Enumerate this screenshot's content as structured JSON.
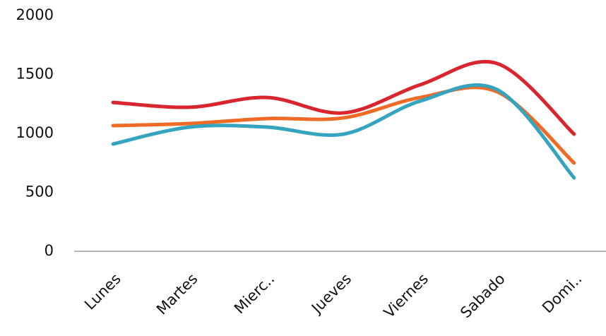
{
  "chart_data": {
    "type": "line",
    "categories": [
      "Lunes",
      "Martes",
      "Mierc..",
      "Jueves",
      "Viernes",
      "Sabado",
      "Domi.."
    ],
    "series": [
      {
        "color": "#d9262e",
        "values": [
          1263,
          1222,
          1305,
          1174,
          1413,
          1593,
          994
        ]
      },
      {
        "color": "#ee6a25",
        "values": [
          1066,
          1084,
          1126,
          1132,
          1305,
          1353,
          749
        ]
      },
      {
        "color": "#34a4bf",
        "values": [
          910,
          1054,
          1054,
          994,
          1275,
          1371,
          623
        ]
      }
    ],
    "ylim": [
      0,
      2000
    ],
    "yticks": [
      0,
      500,
      1000,
      1500,
      2000
    ],
    "grid": false,
    "smooth": true
  }
}
